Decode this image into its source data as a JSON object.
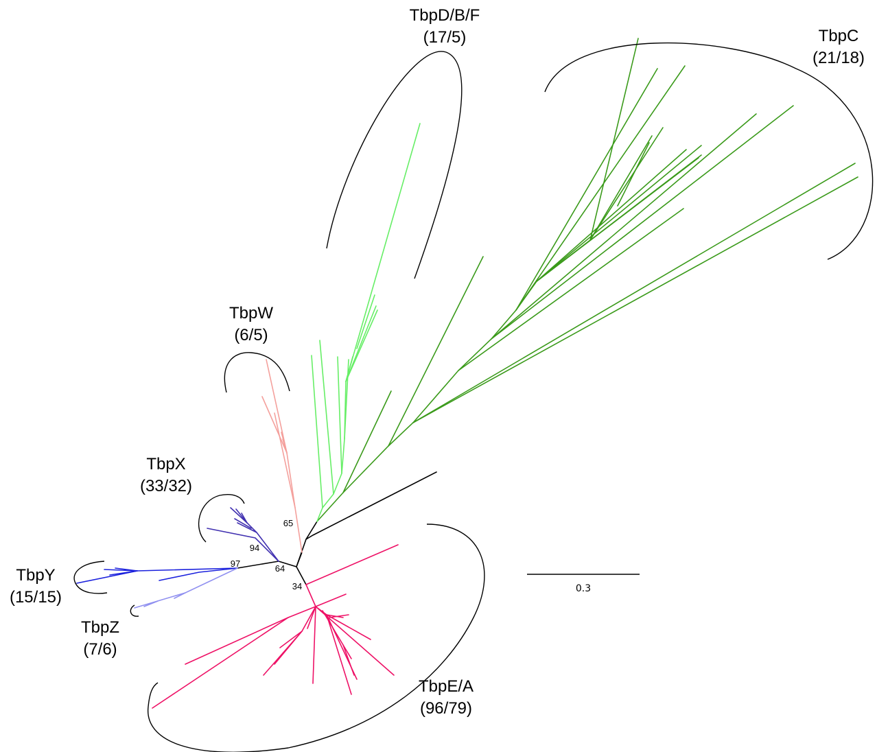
{
  "colors": {
    "TbpC": "#3a9a1a",
    "TbpDBF": "#66ee66",
    "TbpW": "#f4a09c",
    "TbpX": "#4030b0",
    "TbpY": "#1a20dd",
    "TbpZ": "#9090f0",
    "TbpEA": "#ee1166",
    "backbone": "#000000"
  },
  "clades": {
    "TbpDBF": {
      "name": "TbpD/B/F",
      "count": "(17/5)"
    },
    "TbpC": {
      "name": "TbpC",
      "count": "(21/18)"
    },
    "TbpW": {
      "name": "TbpW",
      "count": "(6/5)"
    },
    "TbpX": {
      "name": "TbpX",
      "count": "(33/32)"
    },
    "TbpY": {
      "name": "TbpY",
      "count": "(15/15)"
    },
    "TbpZ": {
      "name": "TbpZ",
      "count": "(7/6)"
    },
    "TbpEA": {
      "name": "TbpE/A",
      "count": "(96/79)"
    }
  },
  "bootstrap": {
    "b65": "65",
    "b94": "94",
    "b97": "97",
    "b64": "64",
    "b34": "34"
  },
  "scale": {
    "label": "0.3"
  }
}
